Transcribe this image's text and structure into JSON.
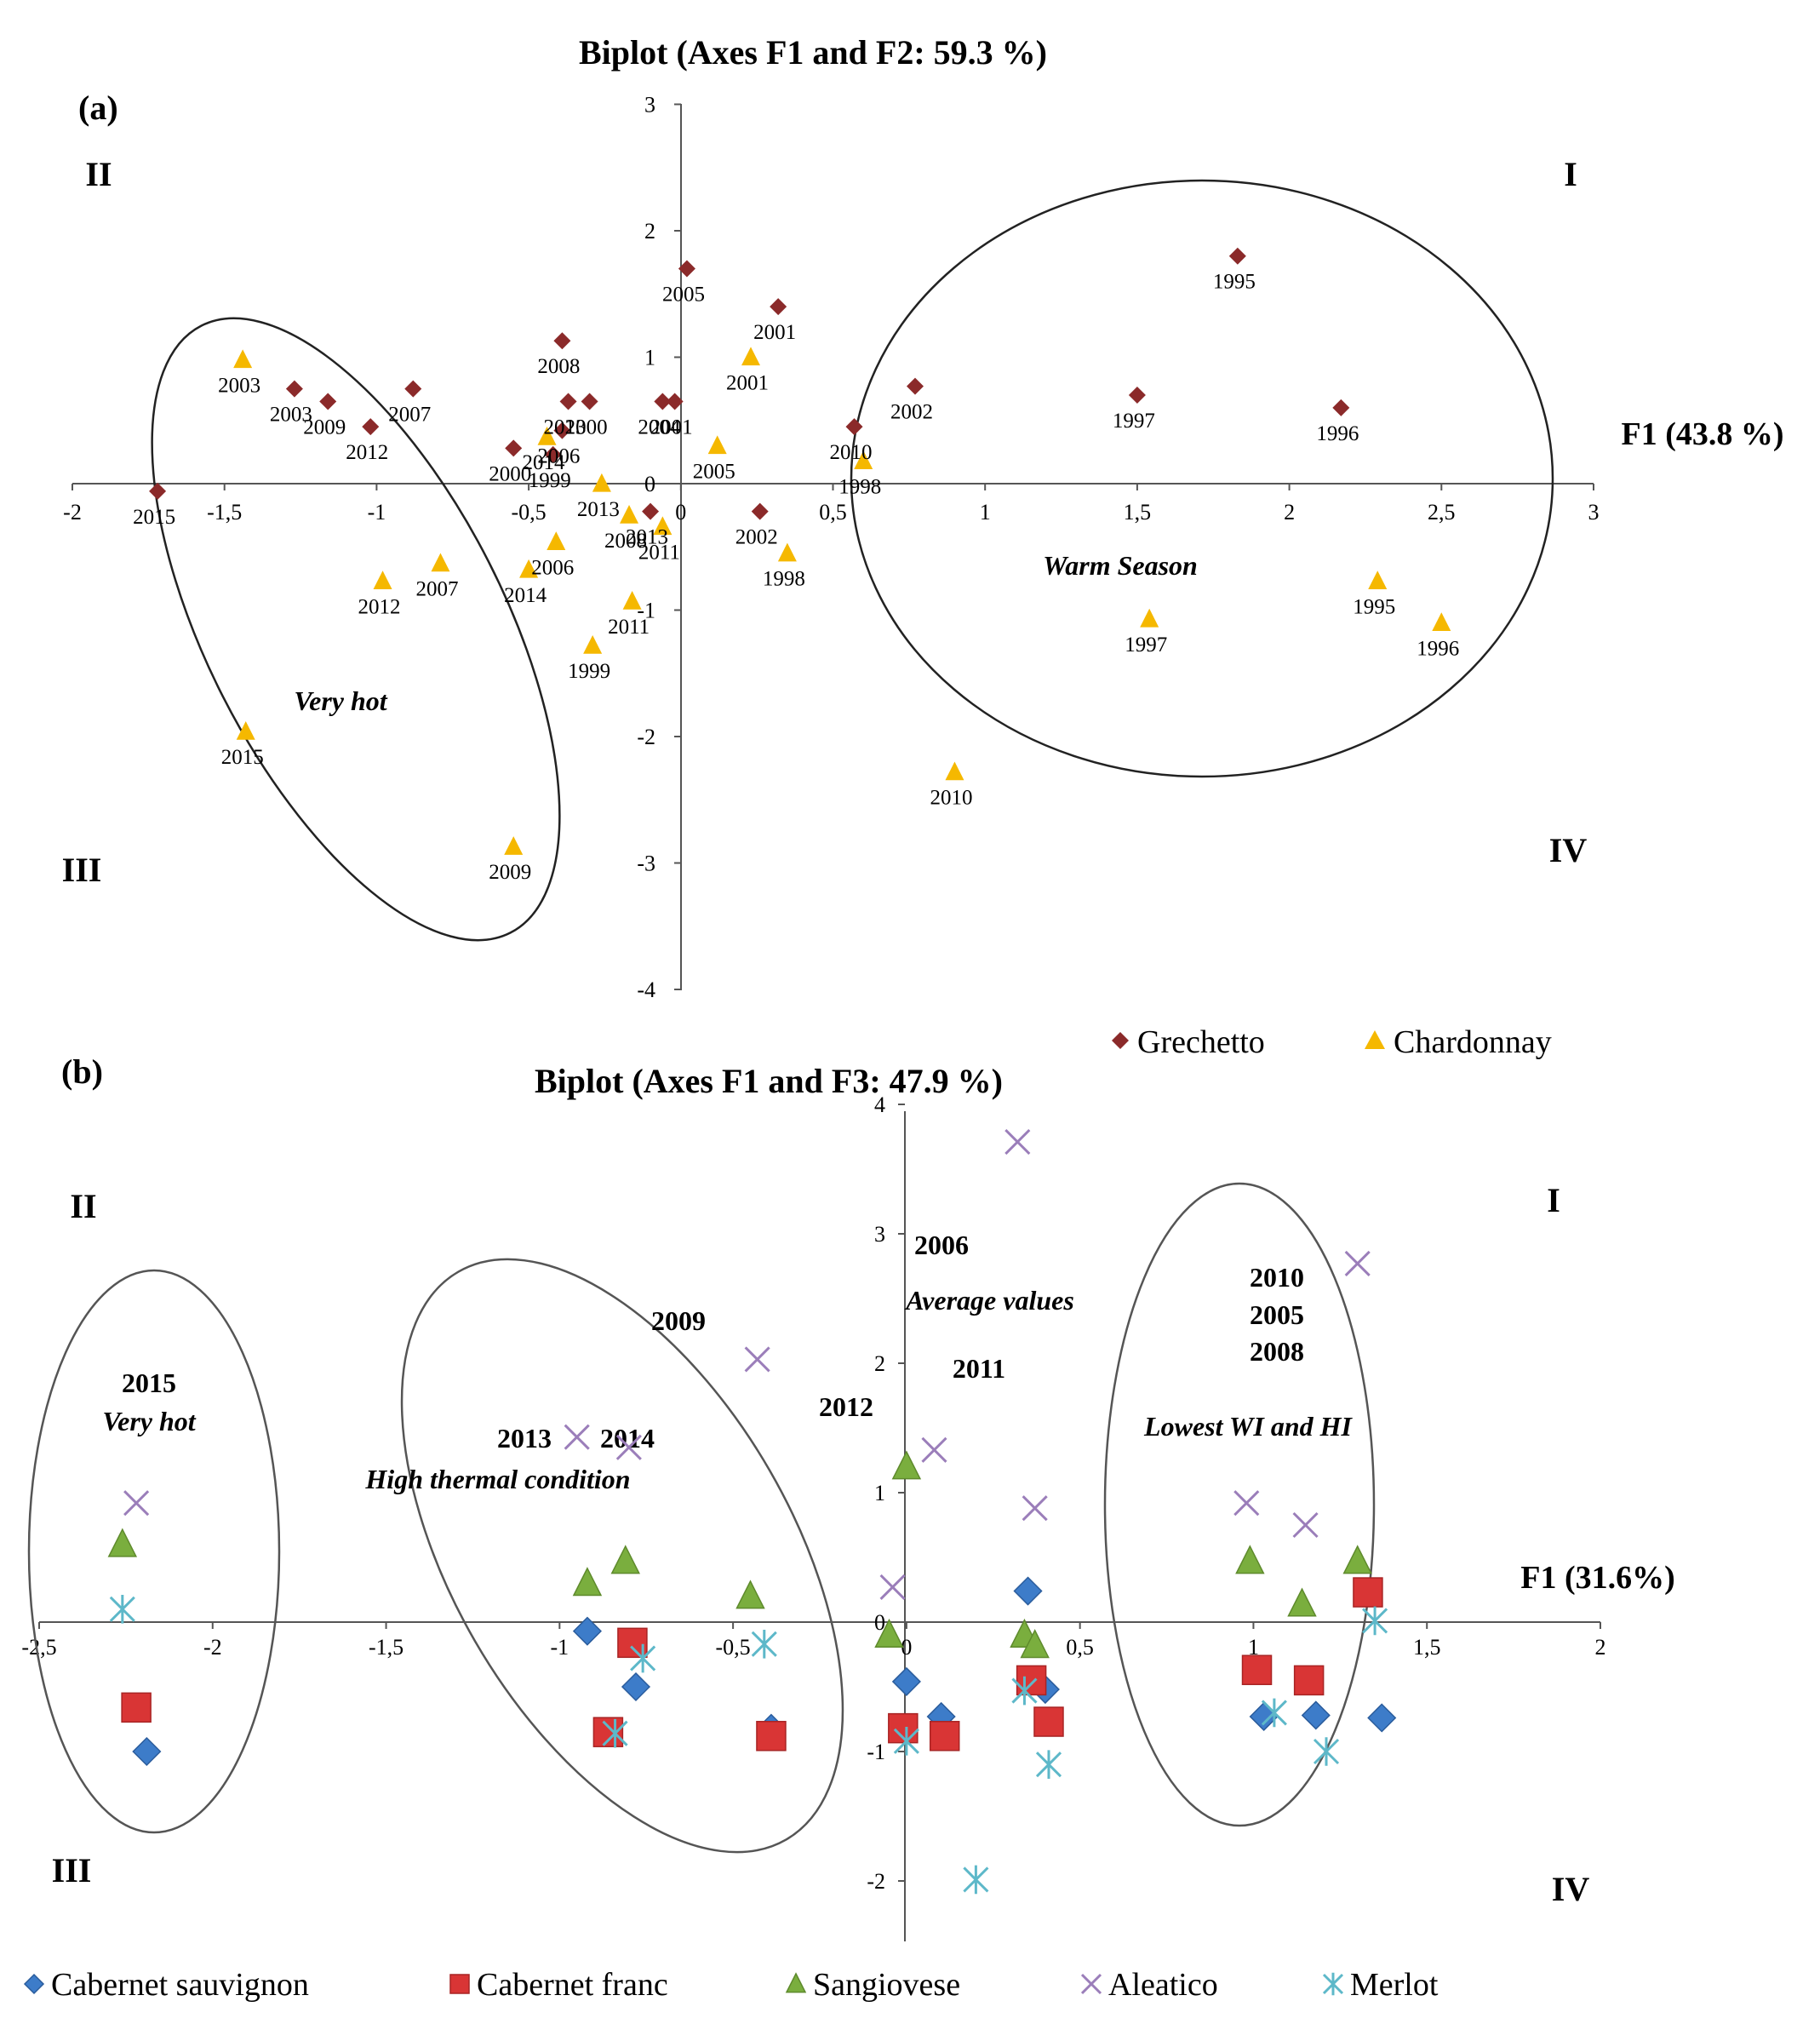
{
  "chart_data": [
    {
      "panel": "(a)",
      "type": "scatter",
      "title": "Biplot (Axes F1 and F2: 59.3 %)",
      "xlabel": "F1 (43.8 %)",
      "ylabel": "",
      "xlim": [
        -2,
        3
      ],
      "ylim": [
        -4,
        3
      ],
      "xticks": [
        -2,
        -1.5,
        -1,
        -0.5,
        0,
        0.5,
        1,
        1.5,
        2,
        2.5,
        3
      ],
      "xtick_labels": [
        "-2",
        "-1,5",
        "-1",
        "-0,5",
        "0",
        "0,5",
        "1",
        "1,5",
        "2",
        "2,5",
        "3"
      ],
      "yticks": [
        -4,
        -3,
        -2,
        -1,
        0,
        1,
        2,
        3
      ],
      "ytick_labels": [
        "-4",
        "-3",
        "-2",
        "-1",
        "0",
        "1",
        "2",
        "3"
      ],
      "quadrants": [
        "I",
        "II",
        "III",
        "IV"
      ],
      "annotations": [
        "Very hot",
        "Warm Season"
      ],
      "legend": [
        "Grechetto",
        "Chardonnay"
      ],
      "series": [
        {
          "name": "Grechetto",
          "marker": "diamond",
          "color": "#8B2A2A",
          "points": [
            {
              "label": "1995",
              "x": 1.83,
              "y": 1.8
            },
            {
              "label": "1996",
              "x": 2.17,
              "y": 0.6
            },
            {
              "label": "1997",
              "x": 1.5,
              "y": 0.7
            },
            {
              "label": "2002",
              "x": 0.77,
              "y": 0.77
            },
            {
              "label": "2010",
              "x": 0.57,
              "y": 0.45
            },
            {
              "label": "2005",
              "x": 0.02,
              "y": 1.7
            },
            {
              "label": "2001",
              "x": 0.32,
              "y": 1.4
            },
            {
              "label": "2001",
              "x": -0.02,
              "y": 0.65
            },
            {
              "label": "2008",
              "x": -0.39,
              "y": 1.13
            },
            {
              "label": "2013",
              "x": -0.37,
              "y": 0.65
            },
            {
              "label": "2000",
              "x": -0.3,
              "y": 0.65
            },
            {
              "label": "2004",
              "x": -0.06,
              "y": 0.65
            },
            {
              "label": "2006",
              "x": -0.39,
              "y": 0.42
            },
            {
              "label": "2000",
              "x": -0.55,
              "y": 0.28
            },
            {
              "label": "1999",
              "x": -0.42,
              "y": 0.23
            },
            {
              "label": "2003",
              "x": -1.27,
              "y": 0.75
            },
            {
              "label": "2009",
              "x": -1.16,
              "y": 0.65
            },
            {
              "label": "2007",
              "x": -0.88,
              "y": 0.75
            },
            {
              "label": "2012",
              "x": -1.02,
              "y": 0.45
            },
            {
              "label": "2015",
              "x": -1.72,
              "y": -0.06
            },
            {
              "label": "2013",
              "x": -0.1,
              "y": -0.22
            },
            {
              "label": "2002",
              "x": 0.26,
              "y": -0.22
            }
          ]
        },
        {
          "name": "Chardonnay",
          "marker": "triangle",
          "color": "#F5B800",
          "points": [
            {
              "label": "2003",
              "x": -1.44,
              "y": 0.98
            },
            {
              "label": "2012",
              "x": -0.98,
              "y": -0.77
            },
            {
              "label": "2007",
              "x": -0.79,
              "y": -0.63
            },
            {
              "label": "2015",
              "x": -1.43,
              "y": -1.96
            },
            {
              "label": "2009",
              "x": -0.55,
              "y": -2.87
            },
            {
              "label": "2014",
              "x": -0.5,
              "y": -0.68
            },
            {
              "label": "2006",
              "x": -0.41,
              "y": -0.46
            },
            {
              "label": "2014",
              "x": -0.44,
              "y": 0.37
            },
            {
              "label": "2013",
              "x": -0.26,
              "y": 0.0
            },
            {
              "label": "2008",
              "x": -0.17,
              "y": -0.25
            },
            {
              "label": "2011",
              "x": -0.06,
              "y": -0.34
            },
            {
              "label": "2011",
              "x": -0.16,
              "y": -0.93
            },
            {
              "label": "1999",
              "x": -0.29,
              "y": -1.28
            },
            {
              "label": "2005",
              "x": 0.12,
              "y": 0.3
            },
            {
              "label": "2001",
              "x": 0.23,
              "y": 1.0
            },
            {
              "label": "1998",
              "x": 0.35,
              "y": -0.55
            },
            {
              "label": "1998",
              "x": 0.6,
              "y": 0.18
            },
            {
              "label": "1997",
              "x": 1.54,
              "y": -1.07
            },
            {
              "label": "1995",
              "x": 2.29,
              "y": -0.77
            },
            {
              "label": "1996",
              "x": 2.5,
              "y": -1.1
            },
            {
              "label": "2010",
              "x": 0.9,
              "y": -2.28
            }
          ]
        }
      ]
    },
    {
      "panel": "(b)",
      "type": "scatter",
      "title": "Biplot (Axes F1 and F3: 47.9 %)",
      "xlabel": "F1 (31.6%)",
      "ylabel": "",
      "xlim": [
        -2.5,
        2
      ],
      "ylim": [
        -2.5,
        4
      ],
      "xticks": [
        -2.5,
        -2,
        -1.5,
        -1,
        -0.5,
        0,
        0.5,
        1,
        1.5,
        2
      ],
      "xtick_labels": [
        "-2,5",
        "-2",
        "-1,5",
        "-1",
        "-0,5",
        "0",
        "0,5",
        "1",
        "1,5",
        "2"
      ],
      "yticks": [
        -2,
        -1,
        0,
        1,
        2,
        3,
        4
      ],
      "ytick_labels": [
        "-2",
        "-1",
        "0",
        "1",
        "2",
        "3",
        "4"
      ],
      "quadrants": [
        "I",
        "II",
        "III",
        "IV"
      ],
      "year_labels": [
        "2015",
        "2009",
        "2013",
        "2014",
        "2012",
        "2006",
        "2011",
        "2010",
        "2005",
        "2008"
      ],
      "annotations": [
        "Very hot",
        "High thermal condition",
        "Average values",
        "Lowest  WI and HI"
      ],
      "legend": [
        "Cabernet  sauvignon",
        "Cabernet franc",
        "Sangiovese",
        "Aleatico",
        "Merlot"
      ],
      "series": [
        {
          "name": "Cabernet  sauvignon",
          "marker": "diamond",
          "color": "#3D7CC9",
          "points": [
            {
              "x": -2.19,
              "y": -1.0
            },
            {
              "x": -0.92,
              "y": -0.07
            },
            {
              "x": -0.78,
              "y": -0.5
            },
            {
              "x": -0.39,
              "y": -0.82
            },
            {
              "x": 0.0,
              "y": -0.46
            },
            {
              "x": 0.1,
              "y": -0.73
            },
            {
              "x": 0.35,
              "y": 0.24
            },
            {
              "x": 0.4,
              "y": -0.52
            },
            {
              "x": 1.03,
              "y": -0.73
            },
            {
              "x": 1.18,
              "y": -0.72
            },
            {
              "x": 1.37,
              "y": -0.74
            }
          ]
        },
        {
          "name": "Cabernet franc",
          "marker": "square",
          "color": "#D93535",
          "points": [
            {
              "x": -2.22,
              "y": -0.66
            },
            {
              "x": -0.86,
              "y": -0.85
            },
            {
              "x": -0.79,
              "y": -0.16
            },
            {
              "x": -0.39,
              "y": -0.88
            },
            {
              "x": -0.01,
              "y": -0.82
            },
            {
              "x": 0.11,
              "y": -0.88
            },
            {
              "x": 0.36,
              "y": -0.45
            },
            {
              "x": 0.41,
              "y": -0.77
            },
            {
              "x": 1.01,
              "y": -0.37
            },
            {
              "x": 1.16,
              "y": -0.45
            },
            {
              "x": 1.33,
              "y": 0.23
            }
          ]
        },
        {
          "name": "Sangiovese",
          "marker": "triangle",
          "color": "#7AAE3E",
          "points": [
            {
              "x": -2.26,
              "y": 0.6
            },
            {
              "x": -0.92,
              "y": 0.3
            },
            {
              "x": -0.81,
              "y": 0.47
            },
            {
              "x": -0.45,
              "y": 0.2
            },
            {
              "x": -0.05,
              "y": -0.1
            },
            {
              "x": 0.0,
              "y": 1.2
            },
            {
              "x": 0.34,
              "y": -0.1
            },
            {
              "x": 0.37,
              "y": -0.18
            },
            {
              "x": 0.99,
              "y": 0.47
            },
            {
              "x": 1.14,
              "y": 0.14
            },
            {
              "x": 1.3,
              "y": 0.47
            }
          ]
        },
        {
          "name": "Aleatico",
          "marker": "x",
          "color": "#9B7EBA",
          "points": [
            {
              "x": -2.22,
              "y": 0.92
            },
            {
              "x": -0.95,
              "y": 1.43
            },
            {
              "x": -0.8,
              "y": 1.35
            },
            {
              "x": -0.43,
              "y": 2.03
            },
            {
              "x": -0.04,
              "y": 0.27
            },
            {
              "x": 0.08,
              "y": 1.33
            },
            {
              "x": 0.32,
              "y": 3.71
            },
            {
              "x": 0.37,
              "y": 0.88
            },
            {
              "x": 0.98,
              "y": 0.92
            },
            {
              "x": 1.15,
              "y": 0.75
            },
            {
              "x": 1.3,
              "y": 2.77
            }
          ]
        },
        {
          "name": "Merlot",
          "marker": "asterisk",
          "color": "#5DB8C9",
          "points": [
            {
              "x": -2.26,
              "y": 0.1
            },
            {
              "x": -0.84,
              "y": -0.86
            },
            {
              "x": -0.76,
              "y": -0.28
            },
            {
              "x": -0.41,
              "y": -0.17
            },
            {
              "x": 0.0,
              "y": -0.92
            },
            {
              "x": 0.2,
              "y": -1.99
            },
            {
              "x": 0.34,
              "y": -0.53
            },
            {
              "x": 0.41,
              "y": -1.1
            },
            {
              "x": 1.06,
              "y": -0.7
            },
            {
              "x": 1.21,
              "y": -1.0
            },
            {
              "x": 1.35,
              "y": 0.01
            }
          ]
        }
      ]
    }
  ]
}
